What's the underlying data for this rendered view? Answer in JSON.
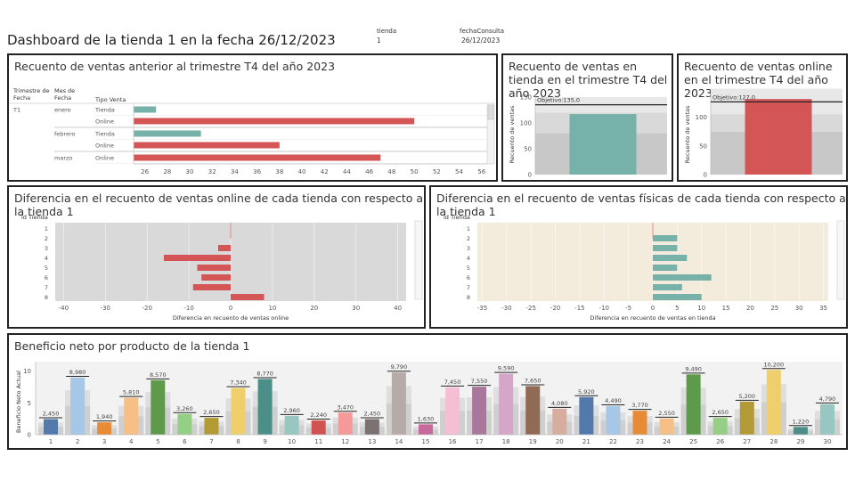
{
  "header": {
    "title": "Dashboard de la tienda 1 en la fecha 26/12/2023",
    "params": [
      {
        "label": "tienda",
        "value": "1"
      },
      {
        "label": "fechaConsulta",
        "value": "26/12/2023"
      }
    ]
  },
  "colors": {
    "tienda": "#76b1aa",
    "online": "#d45556",
    "plot_bg_gray": "#d9d9d9",
    "plot_bg_cream": "#f3ecdc",
    "reference_line": "#e28b8b"
  },
  "chart_data": [
    {
      "id": "ventas-anterior",
      "type": "bar",
      "orientation": "horizontal",
      "title": "Recuento de ventas anterior al trimestre T4 del año 2023",
      "row_headers": [
        "Trimestre de Fecha",
        "Mes de Fecha",
        "Tipo Venta"
      ],
      "rows": [
        {
          "trimestre": "T1",
          "mes": "enero",
          "tipo": "Tienda",
          "value": 27
        },
        {
          "trimestre": "",
          "mes": "",
          "tipo": "Online",
          "value": 50
        },
        {
          "trimestre": "",
          "mes": "febrero",
          "tipo": "Tienda",
          "value": 31
        },
        {
          "trimestre": "",
          "mes": "",
          "tipo": "Online",
          "value": 38
        },
        {
          "trimestre": "",
          "mes": "marzo",
          "tipo": "Online",
          "value": 47
        }
      ],
      "xlim": [
        25,
        56.5
      ],
      "x_ticks": [
        26,
        28,
        30,
        32,
        34,
        36,
        38,
        40,
        42,
        44,
        46,
        48,
        50,
        52,
        54,
        56
      ]
    },
    {
      "id": "ventas-tienda-t4",
      "type": "bar",
      "title": "Recuento de ventas en tienda en el trimestre T4 del año 2023",
      "ylabel": "Recuento de ventas",
      "value": 117,
      "target_label": "Objetivo:",
      "target": "135,0",
      "target_value": 135,
      "band_bounds": [
        0,
        80,
        120,
        150
      ],
      "ylim": [
        0,
        155
      ],
      "y_ticks": [
        0,
        50,
        100,
        150
      ]
    },
    {
      "id": "ventas-online-t4",
      "type": "bar",
      "title": "Recuento de ventas online en el trimestre T4 del año 2023",
      "ylabel": "Recuento de ventas",
      "value": 132,
      "target_label": "Objetivo:",
      "target": "127,0",
      "target_value": 127,
      "band_bounds": [
        0,
        75,
        105,
        150
      ],
      "ylim": [
        0,
        140
      ],
      "y_ticks": [
        0,
        50,
        100
      ]
    },
    {
      "id": "diferencia-online",
      "type": "bar",
      "orientation": "horizontal",
      "title": "Diferencia en el recuento de ventas online de cada tienda con respecto a la tienda 1",
      "row_header": "id Tienda",
      "categories": [
        "1",
        "2",
        "3",
        "4",
        "5",
        "6",
        "7",
        "8"
      ],
      "values": [
        0,
        0,
        -3,
        -16,
        -8,
        -7,
        -9,
        8
      ],
      "xlabel": "Diferencia en recuento de ventas online",
      "xlim": [
        -42,
        42
      ],
      "x_ticks": [
        -40,
        -30,
        -20,
        -10,
        0,
        10,
        20,
        30,
        40
      ]
    },
    {
      "id": "diferencia-fisicas",
      "type": "bar",
      "orientation": "horizontal",
      "title": "Diferencia en el recuento de ventas físicas de cada tienda con respecto a la tienda 1",
      "row_header": "id Tienda",
      "categories": [
        "1",
        "2",
        "3",
        "4",
        "5",
        "6",
        "7",
        "8"
      ],
      "values": [
        0,
        5,
        5,
        7,
        5,
        12,
        6,
        10
      ],
      "xlabel": "Diferencia en recuento de ventas en tienda",
      "xlim": [
        -36,
        36
      ],
      "x_ticks": [
        -35,
        -30,
        -25,
        -20,
        -15,
        -10,
        -5,
        0,
        5,
        10,
        15,
        20,
        25,
        30,
        35
      ]
    },
    {
      "id": "beneficio-producto",
      "type": "bar",
      "title": "Beneficio neto por producto de la tienda 1",
      "ylabel": "Beneficio Neto Actual",
      "categories": [
        "1",
        "2",
        "3",
        "4",
        "5",
        "6",
        "7",
        "8",
        "9",
        "10",
        "11",
        "12",
        "13",
        "14",
        "15",
        "16",
        "17",
        "18",
        "19",
        "20",
        "21",
        "22",
        "23",
        "24",
        "25",
        "26",
        "27",
        "28",
        "29",
        "30"
      ],
      "values": [
        2.45,
        8.98,
        1.94,
        5.81,
        8.57,
        3.26,
        2.65,
        7.34,
        8.77,
        2.96,
        2.24,
        3.47,
        2.45,
        9.79,
        1.63,
        7.45,
        7.55,
        9.59,
        7.65,
        4.08,
        5.92,
        4.49,
        3.77,
        2.55,
        9.49,
        2.65,
        5.2,
        10.2,
        1.22,
        4.79
      ],
      "value_labels": [
        "2,450",
        "8,980",
        "1,940",
        "5,810",
        "8,570",
        "3,260",
        "2,650",
        "7,340",
        "8,770",
        "2,960",
        "2,240",
        "3,470",
        "2,450",
        "9,790",
        "1,630",
        "7,450",
        "7,550",
        "9,590",
        "7,650",
        "4,080",
        "5,920",
        "4,490",
        "3,770",
        "2,550",
        "9,490",
        "2,650",
        "5,200",
        "10,200",
        "1,220",
        "4,790"
      ],
      "bar_colors": [
        "#5378ab",
        "#a7c7e6",
        "#e78b36",
        "#f5bf86",
        "#5d9b4b",
        "#94cf84",
        "#b29a37",
        "#efcf6b",
        "#4c8f89",
        "#98c6c0",
        "#d05251",
        "#f59a98",
        "#7a7170",
        "#b7aba7",
        "#c76a9b",
        "#f4bfd4",
        "#a9779b",
        "#d6a6c8",
        "#8f6b55",
        "#d6ad9e",
        "#5378ab",
        "#a7c7e6",
        "#e78b36",
        "#f5bf86",
        "#5d9b4b",
        "#94cf84",
        "#b29a37",
        "#efcf6b",
        "#4c8f89",
        "#98c6c0"
      ],
      "ylim": [
        0,
        11.5
      ],
      "y_ticks": [
        0,
        5,
        10
      ]
    }
  ]
}
